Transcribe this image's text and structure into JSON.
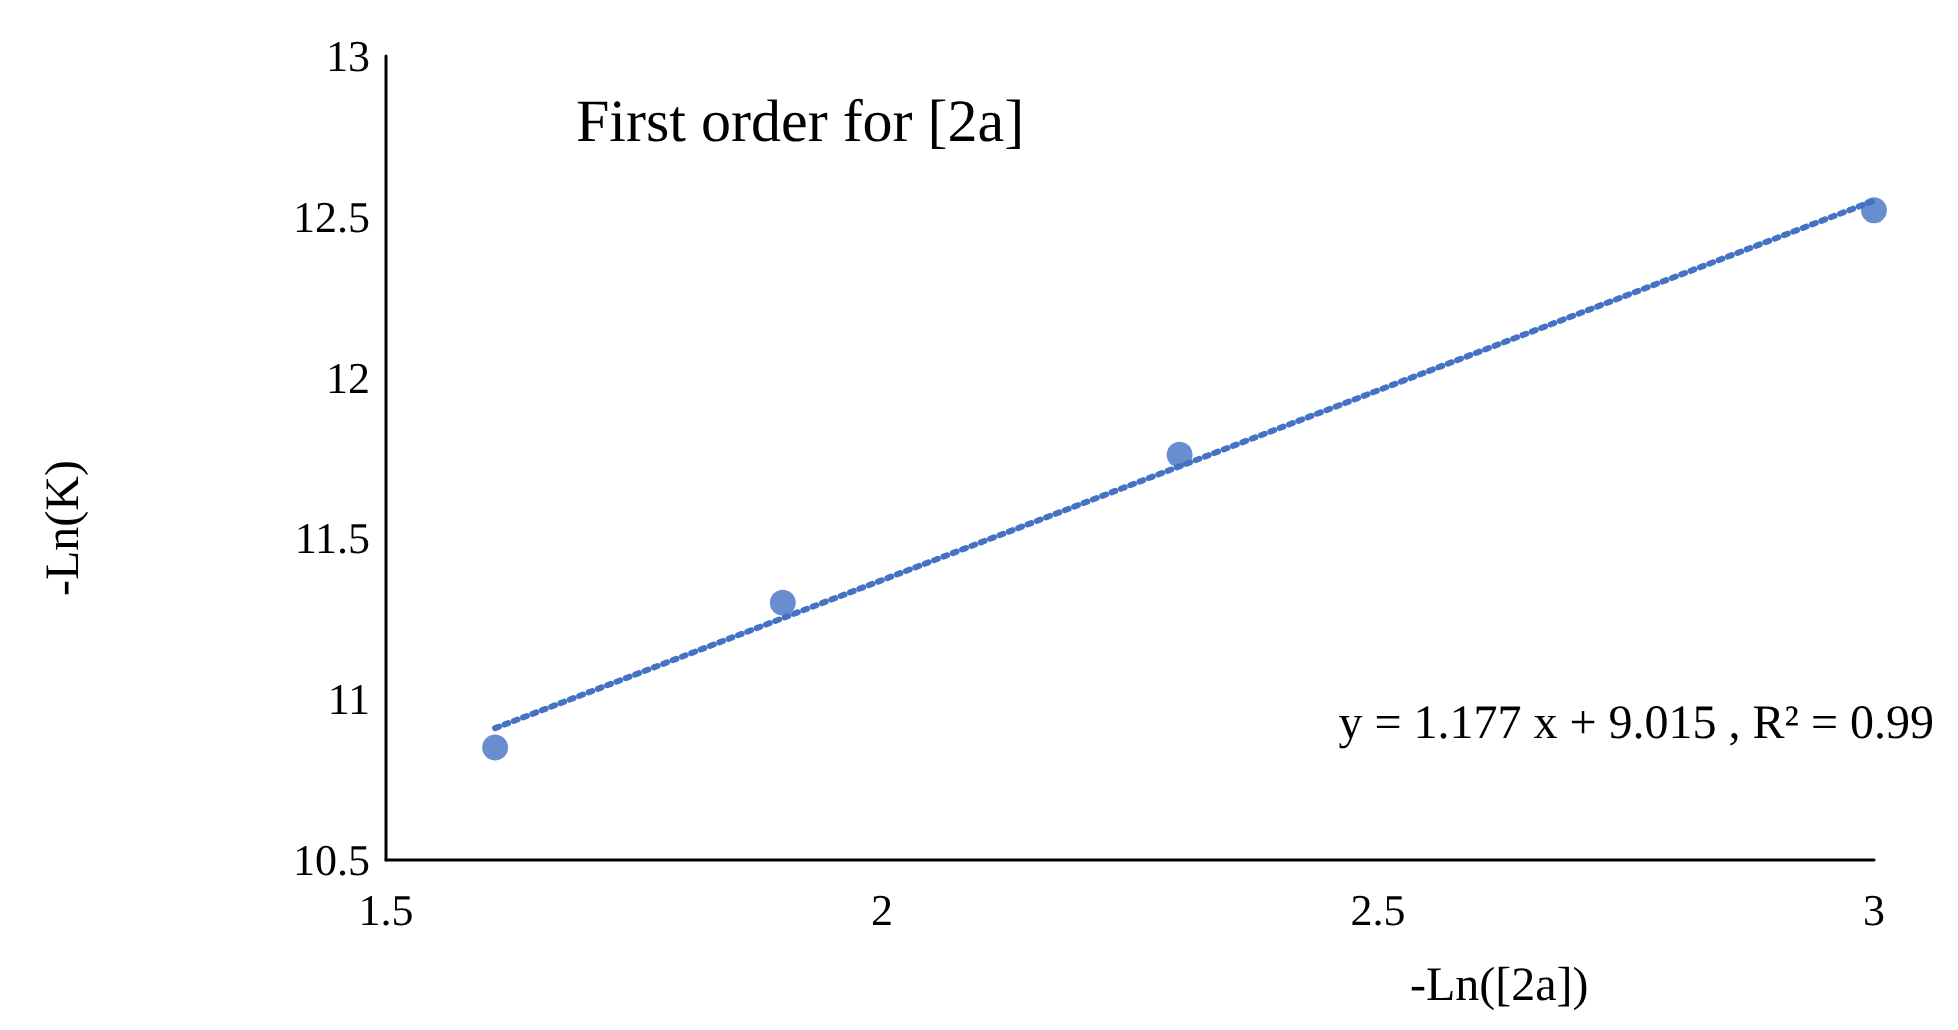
{
  "chart_data": {
    "type": "scatter",
    "title": "First order for [2a]",
    "xlabel": "-Ln([2a])",
    "ylabel": "-Ln(K)",
    "annotations": [
      "y = 1.177 x + 9.015 , R² = 0.99"
    ],
    "xlim": [
      1.5,
      3
    ],
    "xticks": [
      1.5,
      2,
      2.5,
      3
    ],
    "ylim": [
      10.5,
      13
    ],
    "yticks": [
      10.5,
      11,
      11.5,
      12,
      12.5,
      13
    ],
    "marker": "circle",
    "series": [
      {
        "color": "#4472c4",
        "x": [
          1.61,
          1.9,
          2.3,
          3.0
        ],
        "values": [
          10.85,
          11.3,
          11.76,
          12.52
        ]
      },
      {
        "type": "line",
        "color": "#4472c4",
        "line_style": "dotted",
        "marker": "none",
        "x": [
          1.61,
          3.0
        ],
        "values": [
          10.91,
          12.55
        ]
      }
    ]
  }
}
